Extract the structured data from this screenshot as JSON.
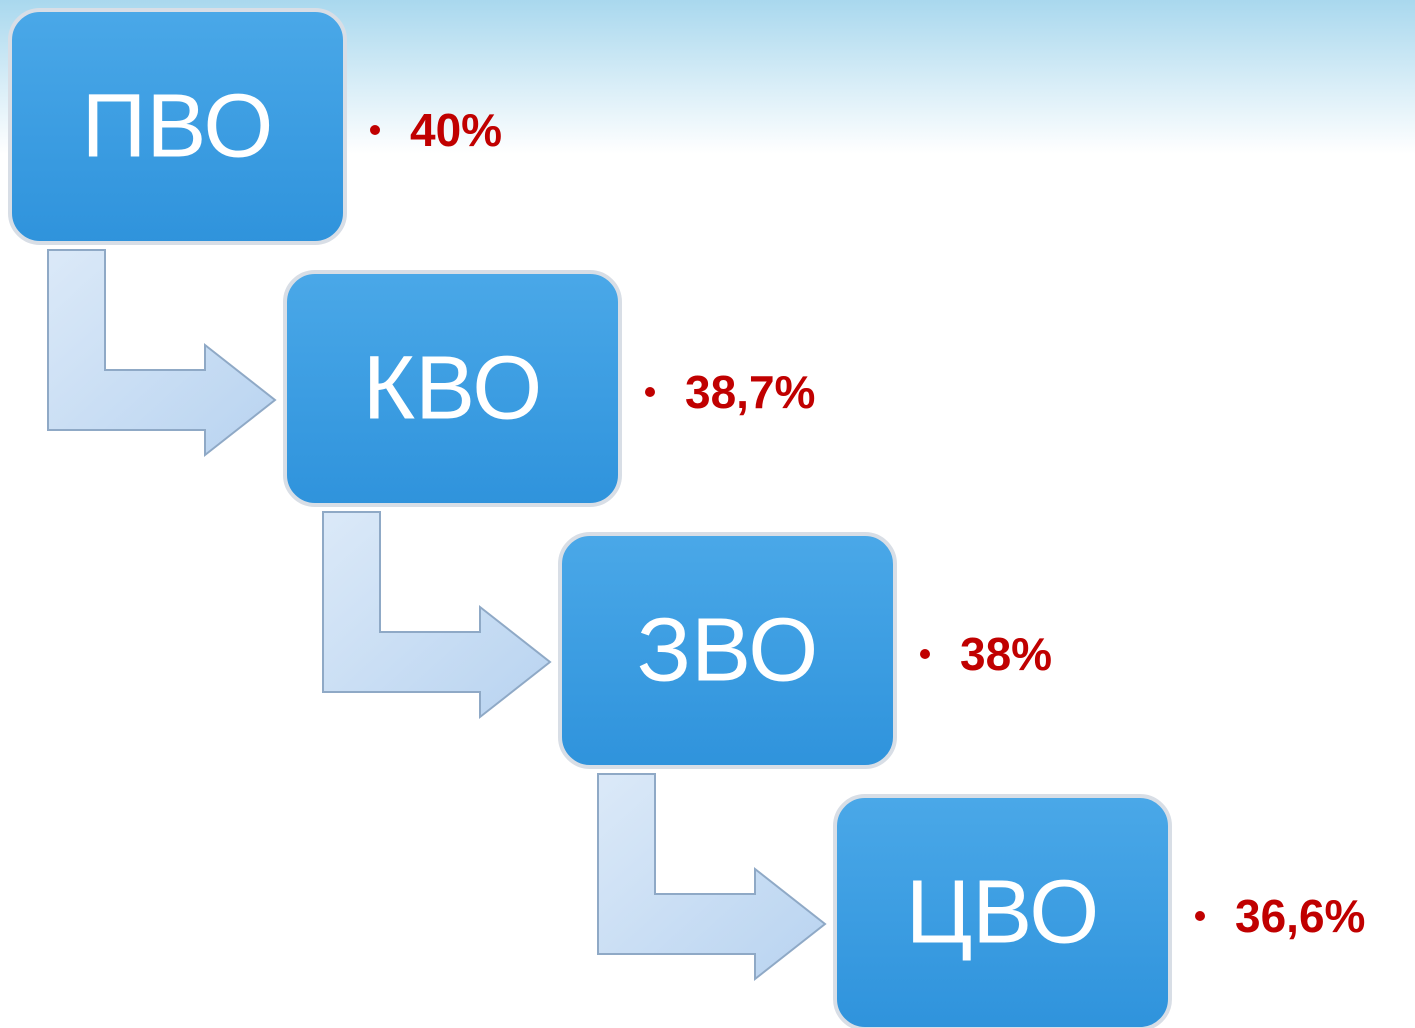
{
  "nodes": [
    {
      "label": "ПВО",
      "value": "40%"
    },
    {
      "label": "КВО",
      "value": "38,7%"
    },
    {
      "label": "ЗВО",
      "value": "38%"
    },
    {
      "label": "ЦВО",
      "value": "36,6%"
    }
  ]
}
